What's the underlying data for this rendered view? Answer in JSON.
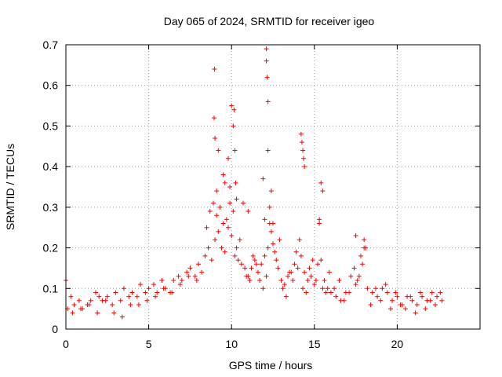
{
  "chart_data": {
    "type": "scatter",
    "title": "Day 065 of 2024, SRMTID for receiver igeo",
    "xlabel": "GPS time / hours",
    "ylabel": "SRMTID / TECUs",
    "xlim": [
      0,
      25
    ],
    "ylim": [
      0,
      0.7
    ],
    "xticks": [
      "0",
      "5",
      "10",
      "15",
      "20"
    ],
    "yticks": [
      "0",
      "0.1",
      "0.2",
      "0.3",
      "0.4",
      "0.5",
      "0.6",
      "0.7"
    ],
    "grid": true,
    "marker": "+",
    "color": "#ff0000",
    "series": [
      {
        "name": "SRMTID",
        "x": [
          0.0,
          0.3,
          0.5,
          0.8,
          1.0,
          1.3,
          1.5,
          1.8,
          2.0,
          2.2,
          2.5,
          2.8,
          3.0,
          3.3,
          3.5,
          3.8,
          4.0,
          4.3,
          4.5,
          4.8,
          5.0,
          5.3,
          5.5,
          5.8,
          6.0,
          6.3,
          6.5,
          6.8,
          7.0,
          7.3,
          7.5,
          7.8,
          8.0,
          8.2,
          8.4,
          8.6,
          8.8,
          9.0,
          9.2,
          9.4,
          9.6,
          9.8,
          10.0,
          10.2,
          10.4,
          10.6,
          10.8,
          11.0,
          11.2,
          11.4,
          11.6,
          11.8,
          12.0,
          12.2,
          12.4,
          12.6,
          12.8,
          13.0,
          13.2,
          13.4,
          13.6,
          13.8,
          14.0,
          14.2,
          14.4,
          14.6,
          14.8,
          15.0,
          15.2,
          15.4,
          15.6,
          15.8,
          16.0,
          16.3,
          16.6,
          16.9,
          17.2,
          17.4,
          17.6,
          17.8,
          18.0,
          18.2,
          18.5,
          18.8,
          19.1,
          19.4,
          19.7,
          20.0,
          20.3,
          20.6,
          20.9,
          21.2,
          21.5,
          21.8,
          22.1,
          22.4,
          22.7,
          0.1,
          0.4,
          0.9,
          1.4,
          1.9,
          2.4,
          2.9,
          3.4,
          3.9,
          4.4,
          4.9,
          5.4,
          5.9,
          6.4,
          6.9,
          7.4,
          7.9,
          8.5,
          8.7,
          8.9,
          9.1,
          9.3,
          9.5,
          9.7,
          9.9,
          10.1,
          10.3,
          10.5,
          10.7,
          10.9,
          11.1,
          11.3,
          11.5,
          11.7,
          11.9,
          12.1,
          12.3,
          12.5,
          12.7,
          12.9,
          13.1,
          13.3,
          13.5,
          13.7,
          13.9,
          14.1,
          14.3,
          14.5,
          14.7,
          14.9,
          15.1,
          15.3,
          15.5,
          15.7,
          15.9,
          16.2,
          16.5,
          16.8,
          17.1,
          17.5,
          17.7,
          17.9,
          18.1,
          18.4,
          18.7,
          19.0,
          19.3,
          19.6,
          19.9,
          20.2,
          20.5,
          20.8,
          21.1,
          21.4,
          21.7,
          22.0,
          22.3,
          22.6,
          8.95,
          8.97,
          9.1,
          9.0,
          9.2,
          9.5,
          10.0,
          10.1,
          10.15,
          10.2,
          10.25,
          10.3,
          11.0,
          11.9,
          12.1,
          12.1,
          12.15,
          12.2,
          12.2,
          12.3,
          12.4,
          14.2,
          14.25,
          14.3,
          14.35,
          14.4,
          15.4,
          15.5,
          15.3,
          17.5,
          18.0,
          9.6,
          9.8,
          9.9,
          12.0,
          12.5
        ],
        "y": [
          0.12,
          0.08,
          0.06,
          0.07,
          0.05,
          0.06,
          0.07,
          0.09,
          0.08,
          0.07,
          0.08,
          0.06,
          0.09,
          0.07,
          0.1,
          0.08,
          0.09,
          0.08,
          0.11,
          0.09,
          0.1,
          0.11,
          0.09,
          0.12,
          0.1,
          0.09,
          0.12,
          0.13,
          0.12,
          0.14,
          0.15,
          0.13,
          0.16,
          0.14,
          0.18,
          0.2,
          0.17,
          0.22,
          0.24,
          0.2,
          0.19,
          0.25,
          0.23,
          0.18,
          0.17,
          0.16,
          0.15,
          0.13,
          0.15,
          0.17,
          0.14,
          0.16,
          0.18,
          0.2,
          0.24,
          0.19,
          0.15,
          0.12,
          0.11,
          0.13,
          0.14,
          0.16,
          0.15,
          0.18,
          0.14,
          0.12,
          0.13,
          0.11,
          0.16,
          0.17,
          0.12,
          0.1,
          0.09,
          0.08,
          0.07,
          0.09,
          0.13,
          0.15,
          0.12,
          0.18,
          0.2,
          0.1,
          0.09,
          0.08,
          0.1,
          0.09,
          0.07,
          0.08,
          0.06,
          0.08,
          0.07,
          0.06,
          0.08,
          0.07,
          0.09,
          0.08,
          0.07,
          0.05,
          0.04,
          0.05,
          0.06,
          0.04,
          0.07,
          0.04,
          0.03,
          0.06,
          0.06,
          0.07,
          0.08,
          0.1,
          0.09,
          0.11,
          0.13,
          0.12,
          0.25,
          0.29,
          0.31,
          0.28,
          0.3,
          0.26,
          0.27,
          0.31,
          0.29,
          0.2,
          0.22,
          0.31,
          0.13,
          0.12,
          0.18,
          0.16,
          0.12,
          0.1,
          0.13,
          0.26,
          0.21,
          0.17,
          0.22,
          0.1,
          0.08,
          0.14,
          0.12,
          0.19,
          0.22,
          0.1,
          0.09,
          0.15,
          0.17,
          0.12,
          0.26,
          0.1,
          0.09,
          0.14,
          0.1,
          0.12,
          0.07,
          0.09,
          0.11,
          0.13,
          0.16,
          0.2,
          0.06,
          0.1,
          0.07,
          0.11,
          0.05,
          0.09,
          0.06,
          0.05,
          0.08,
          0.04,
          0.09,
          0.05,
          0.07,
          0.06,
          0.09,
          0.52,
          0.64,
          0.34,
          0.47,
          0.44,
          0.38,
          0.55,
          0.5,
          0.54,
          0.44,
          0.36,
          0.32,
          0.29,
          0.37,
          0.69,
          0.66,
          0.62,
          0.56,
          0.44,
          0.3,
          0.34,
          0.48,
          0.46,
          0.44,
          0.42,
          0.4,
          0.36,
          0.34,
          0.27,
          0.23,
          0.22,
          0.36,
          0.42,
          0.35,
          0.27,
          0.26
        ]
      }
    ]
  }
}
